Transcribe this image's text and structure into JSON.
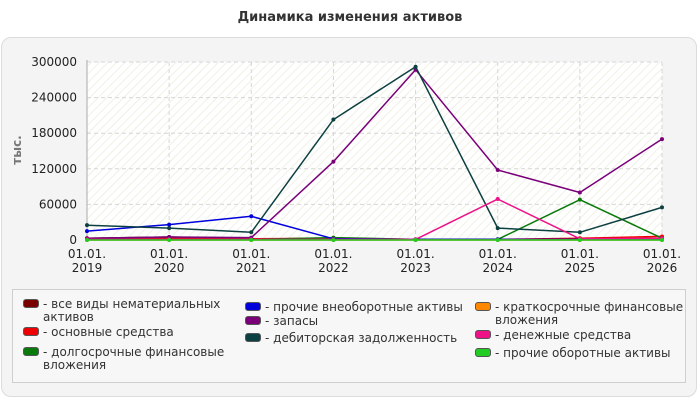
{
  "chart_data": {
    "type": "line",
    "title": "Динамика изменения активов",
    "ylabel": "тыс.",
    "xlabel": "",
    "ylim": [
      0,
      300000
    ],
    "yticks": [
      0,
      60000,
      120000,
      180000,
      240000,
      300000
    ],
    "yticklabels": [
      "0",
      "60000",
      "120000",
      "180000",
      "240000",
      "300000"
    ],
    "categories": [
      [
        "01.01.",
        "2019"
      ],
      [
        "01.01.",
        "2020"
      ],
      [
        "01.01.",
        "2021"
      ],
      [
        "01.01.",
        "2022"
      ],
      [
        "01.01.",
        "2023"
      ],
      [
        "01.01.",
        "2024"
      ],
      [
        "01.01.",
        "2025"
      ],
      [
        "01.01.",
        "2026"
      ]
    ],
    "grid": true,
    "legend_position": "bottom",
    "series": [
      {
        "name": "- все виды нематериальных активов",
        "color": "#7a0000",
        "values": [
          3000,
          5000,
          2000,
          1000,
          500,
          500,
          500,
          3000
        ]
      },
      {
        "name": "- основные средства",
        "color": "#ee0000",
        "values": [
          2000,
          3000,
          2000,
          3000,
          1000,
          1000,
          3000,
          6000
        ]
      },
      {
        "name": "- долгосрочные финансовые вложения",
        "color": "#0a7a0a",
        "values": [
          1000,
          1000,
          1000,
          4000,
          1000,
          1000,
          68000,
          3000
        ]
      },
      {
        "name": "- прочие внеоборотные активы",
        "color": "#0000dd",
        "values": [
          15000,
          26000,
          40000,
          2000,
          1000,
          1000,
          1000,
          1000
        ]
      },
      {
        "name": "- запасы",
        "color": "#7a007a",
        "values": [
          3000,
          5000,
          4000,
          132000,
          287000,
          118000,
          80000,
          170000
        ]
      },
      {
        "name": "- дебиторская задолженность",
        "color": "#0d4040",
        "values": [
          25000,
          20000,
          13000,
          203000,
          292000,
          20000,
          13000,
          55000
        ]
      },
      {
        "name": "- краткосрочные финансовые вложения",
        "color": "#ff8800",
        "values": [
          0,
          0,
          0,
          0,
          0,
          0,
          0,
          0
        ]
      },
      {
        "name": "- денежные средства",
        "color": "#ee1188",
        "values": [
          1000,
          1000,
          1000,
          1000,
          1000,
          69000,
          2000,
          3000
        ]
      },
      {
        "name": "- прочие оборотные активы",
        "color": "#22cc22",
        "values": [
          0,
          0,
          0,
          0,
          0,
          0,
          0,
          0
        ]
      }
    ],
    "legend_rows": [
      [
        "- все виды нематериальных",
        "активов"
      ],
      [
        "- основные средства"
      ],
      [
        "- долгосрочные финансовые",
        "вложения"
      ],
      [
        "- прочие внеоборотные активы"
      ],
      [
        "- запасы"
      ],
      [
        "- дебиторская задолженность"
      ],
      [
        "- краткосрочные финансовые",
        "вложения"
      ],
      [
        "- денежные средства"
      ],
      [
        "- прочие оборотные активы"
      ]
    ]
  }
}
